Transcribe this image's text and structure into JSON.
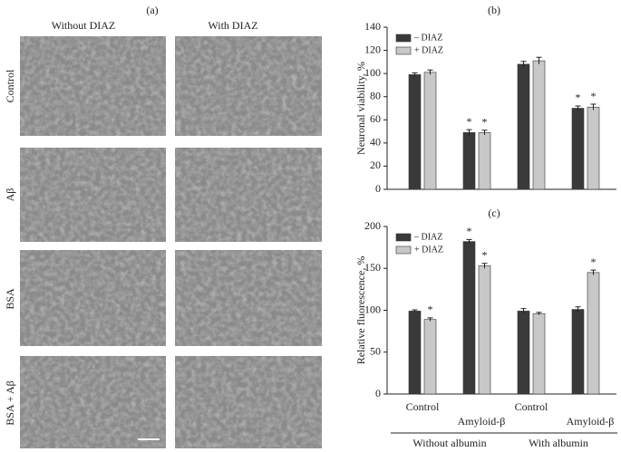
{
  "figure": {
    "panel_a": {
      "label": "(a)",
      "columns": [
        "Without DIAZ",
        "With DIAZ"
      ],
      "rows": [
        "Control",
        "Aβ",
        "BSA",
        "BSA + Aβ"
      ]
    }
  },
  "chart_data": [
    {
      "type": "bar",
      "panel_label": "(b)",
      "y_label": "Neuronal viability, %",
      "categories": [
        null,
        null,
        null,
        null
      ],
      "series": [
        {
          "name": "– DIAZ",
          "color": "#3a3a3a",
          "values": [
            99,
            49,
            108,
            70
          ],
          "errors": [
            1.5,
            2.5,
            2.5,
            2
          ],
          "significant": [
            false,
            true,
            false,
            true
          ]
        },
        {
          "name": "+ DIAZ",
          "color": "#c8c8c8",
          "values": [
            101,
            49,
            111,
            71
          ],
          "errors": [
            2,
            2,
            3,
            2.5
          ],
          "significant": [
            false,
            true,
            false,
            true
          ]
        }
      ],
      "marker": "*",
      "ylim": [
        0,
        140
      ],
      "yticks": [
        0,
        20,
        40,
        60,
        80,
        100,
        120,
        140
      ],
      "legend": "upper left"
    },
    {
      "type": "bar",
      "panel_label": "(c)",
      "y_label": "Relative fluorescence, %",
      "categories": [
        "Control",
        "Amyloid-β",
        "Control",
        "Amyloid-β"
      ],
      "group_labels": [
        "Without albumin",
        "With albumin"
      ],
      "series": [
        {
          "name": "– DIAZ",
          "color": "#3a3a3a",
          "values": [
            99,
            182,
            99,
            101
          ],
          "errors": [
            1.5,
            2.5,
            3,
            3
          ],
          "significant": [
            false,
            true,
            false,
            false
          ]
        },
        {
          "name": "+ DIAZ",
          "color": "#c8c8c8",
          "values": [
            89,
            153,
            96,
            145
          ],
          "errors": [
            2,
            3,
            1.5,
            3
          ],
          "significant": [
            true,
            true,
            false,
            true
          ]
        }
      ],
      "marker": "*",
      "ylim": [
        0,
        200
      ],
      "yticks": [
        0,
        50,
        100,
        150,
        200
      ],
      "legend": "upper left"
    }
  ]
}
